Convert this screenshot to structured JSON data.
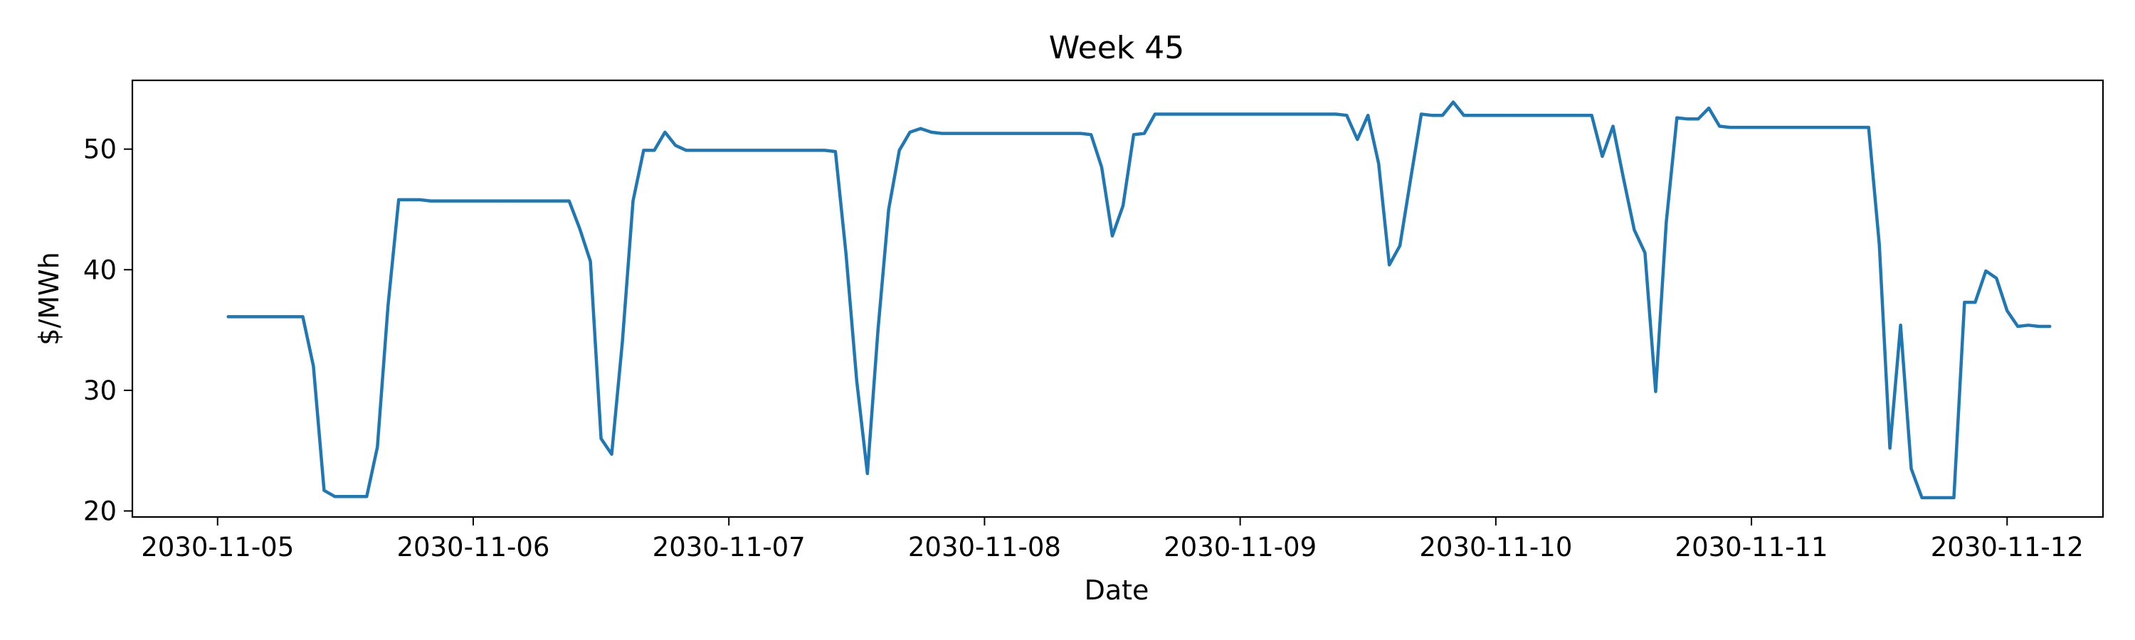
{
  "chart_data": {
    "type": "line",
    "title": "Week 45",
    "xlabel": "Date",
    "ylabel": "$/MWh",
    "x_start": "2030-11-05T01:00",
    "x_step_hours": 1,
    "xlim": [
      "2030-11-04T16:00",
      "2030-11-12T09:00"
    ],
    "ylim": [
      19.5,
      55.7
    ],
    "x_ticks": [
      "2030-11-05",
      "2030-11-06",
      "2030-11-07",
      "2030-11-08",
      "2030-11-09",
      "2030-11-10",
      "2030-11-11",
      "2030-11-12"
    ],
    "y_ticks": [
      20,
      30,
      40,
      50
    ],
    "grid": false,
    "series": [
      {
        "name": "",
        "color": "#1f77b4",
        "values": [
          36.1,
          36.1,
          36.1,
          36.1,
          36.1,
          36.1,
          36.1,
          36.1,
          32.0,
          21.7,
          21.2,
          21.2,
          21.2,
          21.2,
          25.3,
          37.0,
          45.8,
          45.8,
          45.8,
          45.7,
          45.7,
          45.7,
          45.7,
          45.7,
          45.7,
          45.7,
          45.7,
          45.7,
          45.7,
          45.7,
          45.7,
          45.7,
          45.7,
          43.4,
          40.7,
          26.0,
          24.7,
          34.0,
          45.7,
          49.9,
          49.9,
          51.4,
          50.3,
          49.9,
          49.9,
          49.9,
          49.9,
          49.9,
          49.9,
          49.9,
          49.9,
          49.9,
          49.9,
          49.9,
          49.9,
          49.9,
          49.9,
          49.8,
          41.3,
          30.8,
          23.1,
          35.0,
          45.0,
          49.9,
          51.4,
          51.7,
          51.4,
          51.3,
          51.3,
          51.3,
          51.3,
          51.3,
          51.3,
          51.3,
          51.3,
          51.3,
          51.3,
          51.3,
          51.3,
          51.3,
          51.3,
          51.2,
          48.5,
          42.8,
          45.3,
          51.2,
          51.3,
          52.9,
          52.9,
          52.9,
          52.9,
          52.9,
          52.9,
          52.9,
          52.9,
          52.9,
          52.9,
          52.9,
          52.9,
          52.9,
          52.9,
          52.9,
          52.9,
          52.9,
          52.9,
          52.8,
          50.8,
          52.8,
          48.8,
          40.4,
          42.0,
          47.5,
          52.9,
          52.8,
          52.8,
          53.9,
          52.8,
          52.8,
          52.8,
          52.8,
          52.8,
          52.8,
          52.8,
          52.8,
          52.8,
          52.8,
          52.8,
          52.8,
          52.8,
          49.4,
          51.9,
          47.5,
          43.3,
          41.4,
          29.9,
          43.9,
          52.6,
          52.5,
          52.5,
          53.4,
          51.9,
          51.8,
          51.8,
          51.8,
          51.8,
          51.8,
          51.8,
          51.8,
          51.8,
          51.8,
          51.8,
          51.8,
          51.8,
          51.8,
          51.8,
          42.1,
          25.2,
          35.4,
          23.5,
          21.1,
          21.1,
          21.1,
          21.1,
          37.3,
          37.3,
          39.9,
          39.3,
          36.6,
          35.3,
          35.4,
          35.3,
          35.3
        ]
      }
    ]
  }
}
